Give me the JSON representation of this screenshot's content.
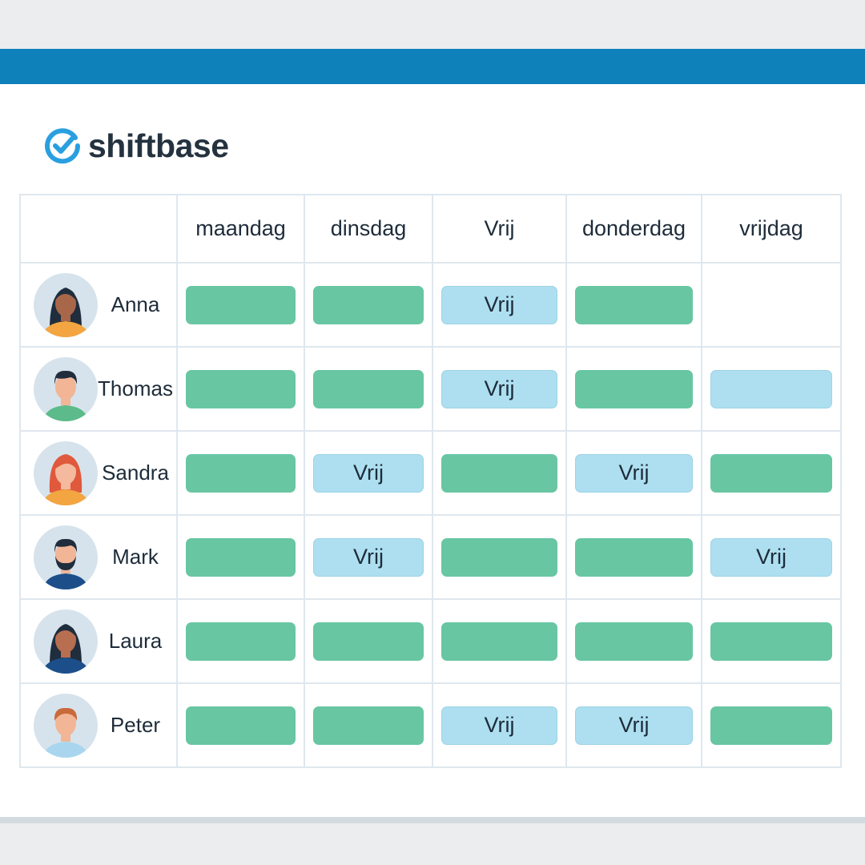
{
  "brand": {
    "name": "shiftbase",
    "colors": {
      "accent": "#0e80ba",
      "logo_icon": "#2a9fe0",
      "shift": "#68c6a3",
      "off": "#addff0"
    }
  },
  "schedule": {
    "days": [
      "maandag",
      "dinsdag",
      "Vrij",
      "donderdag",
      "vrijdag"
    ],
    "off_label": "Vrij",
    "employees": [
      {
        "name": "Anna",
        "avatar": "woman-dark-hair-icon",
        "cells": [
          "work",
          "work",
          "off",
          "work",
          "empty"
        ]
      },
      {
        "name": "Thomas",
        "avatar": "man-short-hair-icon",
        "cells": [
          "work",
          "work",
          "off",
          "work",
          "off-blank"
        ]
      },
      {
        "name": "Sandra",
        "avatar": "woman-red-hair-icon",
        "cells": [
          "work",
          "off",
          "work",
          "off",
          "work"
        ]
      },
      {
        "name": "Mark",
        "avatar": "man-beard-icon",
        "cells": [
          "work",
          "off",
          "work",
          "work",
          "off"
        ]
      },
      {
        "name": "Laura",
        "avatar": "woman-dark-hair-icon",
        "cells": [
          "work",
          "work",
          "work",
          "work",
          "work"
        ]
      },
      {
        "name": "Peter",
        "avatar": "man-ginger-hair-icon",
        "cells": [
          "work",
          "work",
          "off",
          "off",
          "work"
        ]
      }
    ]
  }
}
